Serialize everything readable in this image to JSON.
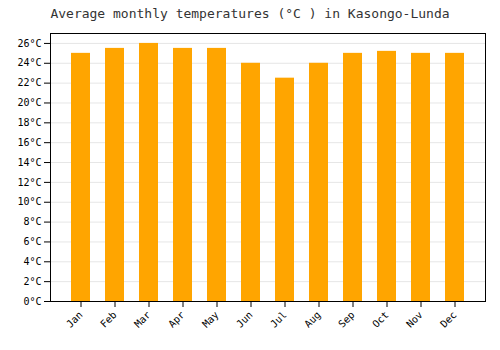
{
  "chart_data": {
    "type": "bar",
    "title": "Average monthly temperatures (°C ) in Kasongo-Lunda",
    "categories": [
      "Jan",
      "Feb",
      "Mar",
      "Apr",
      "May",
      "Jun",
      "Jul",
      "Aug",
      "Sep",
      "Oct",
      "Nov",
      "Dec"
    ],
    "values": [
      25.0,
      25.5,
      26.0,
      25.5,
      25.5,
      24.0,
      22.5,
      24.0,
      25.0,
      25.2,
      25.0,
      25.0
    ],
    "color": "#FFA500",
    "ylim": [
      0,
      27
    ],
    "yticks": [
      {
        "value": 0,
        "label": "0°C"
      },
      {
        "value": 2,
        "label": "2°C"
      },
      {
        "value": 4,
        "label": "4°C"
      },
      {
        "value": 6,
        "label": "6°C"
      },
      {
        "value": 8,
        "label": "8°C"
      },
      {
        "value": 10,
        "label": "10°C"
      },
      {
        "value": 12,
        "label": "12°C"
      },
      {
        "value": 14,
        "label": "14°C"
      },
      {
        "value": 16,
        "label": "16°C"
      },
      {
        "value": 18,
        "label": "18°C"
      },
      {
        "value": 20,
        "label": "20°C"
      },
      {
        "value": 22,
        "label": "22°C"
      },
      {
        "value": 24,
        "label": "24°C"
      },
      {
        "value": 26,
        "label": "26°C"
      }
    ],
    "grid": true
  }
}
